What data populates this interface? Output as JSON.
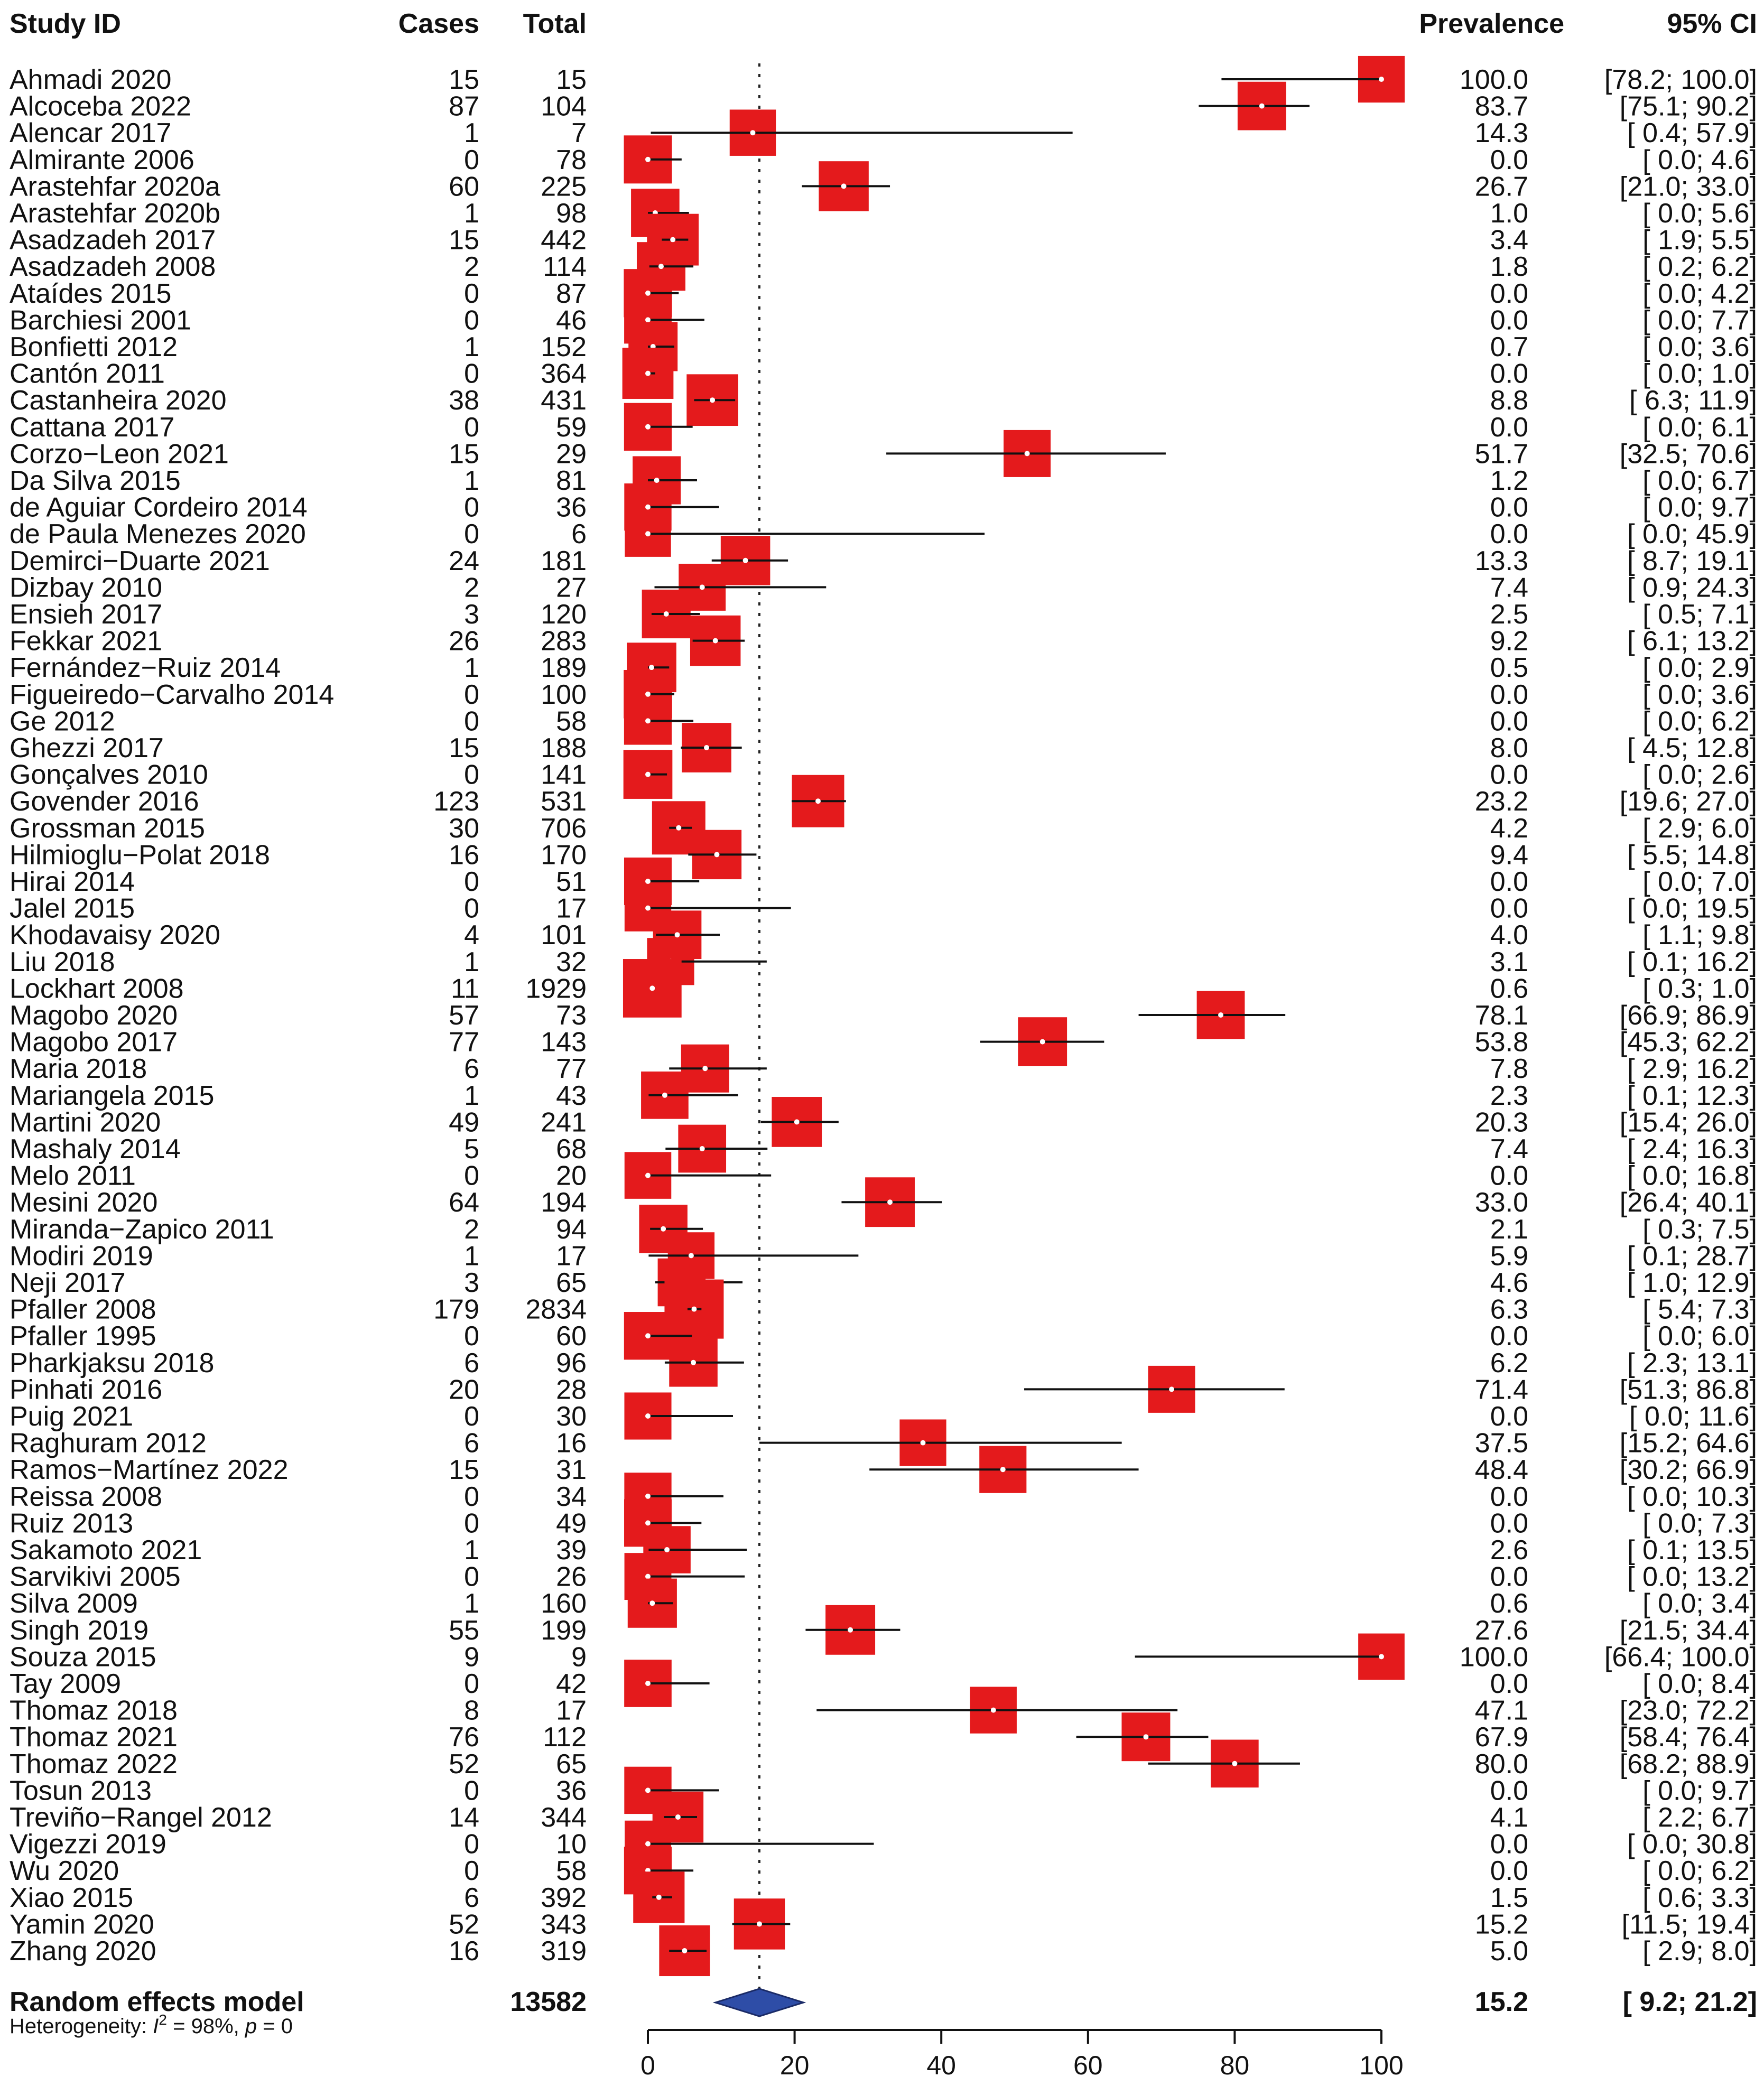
{
  "chart_data": {
    "type": "forest",
    "headers": {
      "study": "Study ID",
      "cases": "Cases",
      "total": "Total",
      "prevalence": "Prevalence",
      "ci": "95% CI"
    },
    "xlim": [
      0,
      100
    ],
    "xticks": [
      "0",
      "20",
      "40",
      "60",
      "80",
      "100"
    ],
    "reference_line": 15.2,
    "marker_color": "#e41a1c",
    "diamond_color": "#2e4da7",
    "studies": [
      {
        "study": "Ahmadi 2020",
        "cases": "15",
        "total": "15",
        "est": 100.0,
        "lo": 78.2,
        "hi": 100.0,
        "prev": "100.0",
        "ci": "[78.2; 100.0]"
      },
      {
        "study": "Alcoceba 2022",
        "cases": "87",
        "total": "104",
        "est": 83.7,
        "lo": 75.1,
        "hi": 90.2,
        "prev": "83.7",
        "ci": "[75.1; 90.2]"
      },
      {
        "study": "Alencar 2017",
        "cases": "1",
        "total": "7",
        "est": 14.3,
        "lo": 0.4,
        "hi": 57.9,
        "prev": "14.3",
        "ci": "[ 0.4; 57.9]"
      },
      {
        "study": "Almirante 2006",
        "cases": "0",
        "total": "78",
        "est": 0.0,
        "lo": 0.0,
        "hi": 4.6,
        "prev": "0.0",
        "ci": "[ 0.0; 4.6]"
      },
      {
        "study": "Arastehfar 2020a",
        "cases": "60",
        "total": "225",
        "est": 26.7,
        "lo": 21.0,
        "hi": 33.0,
        "prev": "26.7",
        "ci": "[21.0; 33.0]"
      },
      {
        "study": "Arastehfar 2020b",
        "cases": "1",
        "total": "98",
        "est": 1.0,
        "lo": 0.0,
        "hi": 5.6,
        "prev": "1.0",
        "ci": "[ 0.0; 5.6]"
      },
      {
        "study": "Asadzadeh 2017",
        "cases": "15",
        "total": "442",
        "est": 3.4,
        "lo": 1.9,
        "hi": 5.5,
        "prev": "3.4",
        "ci": "[ 1.9; 5.5]"
      },
      {
        "study": "Asadzadeh 2008",
        "cases": "2",
        "total": "114",
        "est": 1.8,
        "lo": 0.2,
        "hi": 6.2,
        "prev": "1.8",
        "ci": "[ 0.2; 6.2]"
      },
      {
        "study": "Ataídes 2015",
        "cases": "0",
        "total": "87",
        "est": 0.0,
        "lo": 0.0,
        "hi": 4.2,
        "prev": "0.0",
        "ci": "[ 0.0; 4.2]"
      },
      {
        "study": "Barchiesi 2001",
        "cases": "0",
        "total": "46",
        "est": 0.0,
        "lo": 0.0,
        "hi": 7.7,
        "prev": "0.0",
        "ci": "[ 0.0; 7.7]"
      },
      {
        "study": "Bonfietti 2012",
        "cases": "1",
        "total": "152",
        "est": 0.7,
        "lo": 0.0,
        "hi": 3.6,
        "prev": "0.7",
        "ci": "[ 0.0; 3.6]"
      },
      {
        "study": "Cantón 2011",
        "cases": "0",
        "total": "364",
        "est": 0.0,
        "lo": 0.0,
        "hi": 1.0,
        "prev": "0.0",
        "ci": "[ 0.0; 1.0]"
      },
      {
        "study": "Castanheira 2020",
        "cases": "38",
        "total": "431",
        "est": 8.8,
        "lo": 6.3,
        "hi": 11.9,
        "prev": "8.8",
        "ci": "[ 6.3; 11.9]"
      },
      {
        "study": "Cattana 2017",
        "cases": "0",
        "total": "59",
        "est": 0.0,
        "lo": 0.0,
        "hi": 6.1,
        "prev": "0.0",
        "ci": "[ 0.0; 6.1]"
      },
      {
        "study": "Corzo−Leon 2021",
        "cases": "15",
        "total": "29",
        "est": 51.7,
        "lo": 32.5,
        "hi": 70.6,
        "prev": "51.7",
        "ci": "[32.5; 70.6]"
      },
      {
        "study": "Da Silva 2015",
        "cases": "1",
        "total": "81",
        "est": 1.2,
        "lo": 0.0,
        "hi": 6.7,
        "prev": "1.2",
        "ci": "[ 0.0; 6.7]"
      },
      {
        "study": "de Aguiar Cordeiro 2014",
        "cases": "0",
        "total": "36",
        "est": 0.0,
        "lo": 0.0,
        "hi": 9.7,
        "prev": "0.0",
        "ci": "[ 0.0; 9.7]"
      },
      {
        "study": "de Paula Menezes 2020",
        "cases": "0",
        "total": "6",
        "est": 0.0,
        "lo": 0.0,
        "hi": 45.9,
        "prev": "0.0",
        "ci": "[ 0.0; 45.9]"
      },
      {
        "study": "Demirci−Duarte 2021",
        "cases": "24",
        "total": "181",
        "est": 13.3,
        "lo": 8.7,
        "hi": 19.1,
        "prev": "13.3",
        "ci": "[ 8.7; 19.1]"
      },
      {
        "study": "Dizbay 2010",
        "cases": "2",
        "total": "27",
        "est": 7.4,
        "lo": 0.9,
        "hi": 24.3,
        "prev": "7.4",
        "ci": "[ 0.9; 24.3]"
      },
      {
        "study": "Ensieh 2017",
        "cases": "3",
        "total": "120",
        "est": 2.5,
        "lo": 0.5,
        "hi": 7.1,
        "prev": "2.5",
        "ci": "[ 0.5; 7.1]"
      },
      {
        "study": "Fekkar 2021",
        "cases": "26",
        "total": "283",
        "est": 9.2,
        "lo": 6.1,
        "hi": 13.2,
        "prev": "9.2",
        "ci": "[ 6.1; 13.2]"
      },
      {
        "study": "Fernández−Ruiz 2014",
        "cases": "1",
        "total": "189",
        "est": 0.5,
        "lo": 0.0,
        "hi": 2.9,
        "prev": "0.5",
        "ci": "[ 0.0; 2.9]"
      },
      {
        "study": "Figueiredo−Carvalho 2014",
        "cases": "0",
        "total": "100",
        "est": 0.0,
        "lo": 0.0,
        "hi": 3.6,
        "prev": "0.0",
        "ci": "[ 0.0; 3.6]"
      },
      {
        "study": "Ge 2012",
        "cases": "0",
        "total": "58",
        "est": 0.0,
        "lo": 0.0,
        "hi": 6.2,
        "prev": "0.0",
        "ci": "[ 0.0; 6.2]"
      },
      {
        "study": "Ghezzi 2017",
        "cases": "15",
        "total": "188",
        "est": 8.0,
        "lo": 4.5,
        "hi": 12.8,
        "prev": "8.0",
        "ci": "[ 4.5; 12.8]"
      },
      {
        "study": "Gonçalves 2010",
        "cases": "0",
        "total": "141",
        "est": 0.0,
        "lo": 0.0,
        "hi": 2.6,
        "prev": "0.0",
        "ci": "[ 0.0; 2.6]"
      },
      {
        "study": "Govender 2016",
        "cases": "123",
        "total": "531",
        "est": 23.2,
        "lo": 19.6,
        "hi": 27.0,
        "prev": "23.2",
        "ci": "[19.6; 27.0]"
      },
      {
        "study": "Grossman 2015",
        "cases": "30",
        "total": "706",
        "est": 4.2,
        "lo": 2.9,
        "hi": 6.0,
        "prev": "4.2",
        "ci": "[ 2.9; 6.0]"
      },
      {
        "study": "Hilmioglu−Polat 2018",
        "cases": "16",
        "total": "170",
        "est": 9.4,
        "lo": 5.5,
        "hi": 14.8,
        "prev": "9.4",
        "ci": "[ 5.5; 14.8]"
      },
      {
        "study": "Hirai 2014",
        "cases": "0",
        "total": "51",
        "est": 0.0,
        "lo": 0.0,
        "hi": 7.0,
        "prev": "0.0",
        "ci": "[ 0.0; 7.0]"
      },
      {
        "study": "Jalel 2015",
        "cases": "0",
        "total": "17",
        "est": 0.0,
        "lo": 0.0,
        "hi": 19.5,
        "prev": "0.0",
        "ci": "[ 0.0; 19.5]"
      },
      {
        "study": "Khodavaisy 2020",
        "cases": "4",
        "total": "101",
        "est": 4.0,
        "lo": 1.1,
        "hi": 9.8,
        "prev": "4.0",
        "ci": "[ 1.1; 9.8]"
      },
      {
        "study": "Liu 2018",
        "cases": "1",
        "total": "32",
        "est": 3.1,
        "lo": 0.1,
        "hi": 16.2,
        "prev": "3.1",
        "ci": "[ 0.1; 16.2]"
      },
      {
        "study": "Lockhart 2008",
        "cases": "11",
        "total": "1929",
        "est": 0.6,
        "lo": 0.3,
        "hi": 1.0,
        "prev": "0.6",
        "ci": "[ 0.3; 1.0]"
      },
      {
        "study": "Magobo 2020",
        "cases": "57",
        "total": "73",
        "est": 78.1,
        "lo": 66.9,
        "hi": 86.9,
        "prev": "78.1",
        "ci": "[66.9; 86.9]"
      },
      {
        "study": "Magobo 2017",
        "cases": "77",
        "total": "143",
        "est": 53.8,
        "lo": 45.3,
        "hi": 62.2,
        "prev": "53.8",
        "ci": "[45.3; 62.2]"
      },
      {
        "study": "Maria 2018",
        "cases": "6",
        "total": "77",
        "est": 7.8,
        "lo": 2.9,
        "hi": 16.2,
        "prev": "7.8",
        "ci": "[ 2.9; 16.2]"
      },
      {
        "study": "Mariangela 2015",
        "cases": "1",
        "total": "43",
        "est": 2.3,
        "lo": 0.1,
        "hi": 12.3,
        "prev": "2.3",
        "ci": "[ 0.1; 12.3]"
      },
      {
        "study": "Martini 2020",
        "cases": "49",
        "total": "241",
        "est": 20.3,
        "lo": 15.4,
        "hi": 26.0,
        "prev": "20.3",
        "ci": "[15.4; 26.0]"
      },
      {
        "study": "Mashaly 2014",
        "cases": "5",
        "total": "68",
        "est": 7.4,
        "lo": 2.4,
        "hi": 16.3,
        "prev": "7.4",
        "ci": "[ 2.4; 16.3]"
      },
      {
        "study": "Melo 2011",
        "cases": "0",
        "total": "20",
        "est": 0.0,
        "lo": 0.0,
        "hi": 16.8,
        "prev": "0.0",
        "ci": "[ 0.0; 16.8]"
      },
      {
        "study": "Mesini 2020",
        "cases": "64",
        "total": "194",
        "est": 33.0,
        "lo": 26.4,
        "hi": 40.1,
        "prev": "33.0",
        "ci": "[26.4; 40.1]"
      },
      {
        "study": "Miranda−Zapico 2011",
        "cases": "2",
        "total": "94",
        "est": 2.1,
        "lo": 0.3,
        "hi": 7.5,
        "prev": "2.1",
        "ci": "[ 0.3; 7.5]"
      },
      {
        "study": "Modiri 2019",
        "cases": "1",
        "total": "17",
        "est": 5.9,
        "lo": 0.1,
        "hi": 28.7,
        "prev": "5.9",
        "ci": "[ 0.1; 28.7]"
      },
      {
        "study": "Neji 2017",
        "cases": "3",
        "total": "65",
        "est": 4.6,
        "lo": 1.0,
        "hi": 12.9,
        "prev": "4.6",
        "ci": "[ 1.0; 12.9]"
      },
      {
        "study": "Pfaller 2008",
        "cases": "179",
        "total": "2834",
        "est": 6.3,
        "lo": 5.4,
        "hi": 7.3,
        "prev": "6.3",
        "ci": "[ 5.4; 7.3]"
      },
      {
        "study": "Pfaller 1995",
        "cases": "0",
        "total": "60",
        "est": 0.0,
        "lo": 0.0,
        "hi": 6.0,
        "prev": "0.0",
        "ci": "[ 0.0; 6.0]"
      },
      {
        "study": "Pharkjaksu 2018",
        "cases": "6",
        "total": "96",
        "est": 6.2,
        "lo": 2.3,
        "hi": 13.1,
        "prev": "6.2",
        "ci": "[ 2.3; 13.1]"
      },
      {
        "study": "Pinhati 2016",
        "cases": "20",
        "total": "28",
        "est": 71.4,
        "lo": 51.3,
        "hi": 86.8,
        "prev": "71.4",
        "ci": "[51.3; 86.8]"
      },
      {
        "study": "Puig 2021",
        "cases": "0",
        "total": "30",
        "est": 0.0,
        "lo": 0.0,
        "hi": 11.6,
        "prev": "0.0",
        "ci": "[ 0.0; 11.6]"
      },
      {
        "study": "Raghuram 2012",
        "cases": "6",
        "total": "16",
        "est": 37.5,
        "lo": 15.2,
        "hi": 64.6,
        "prev": "37.5",
        "ci": "[15.2; 64.6]"
      },
      {
        "study": "Ramos−Martínez 2022",
        "cases": "15",
        "total": "31",
        "est": 48.4,
        "lo": 30.2,
        "hi": 66.9,
        "prev": "48.4",
        "ci": "[30.2; 66.9]"
      },
      {
        "study": "Reissa 2008",
        "cases": "0",
        "total": "34",
        "est": 0.0,
        "lo": 0.0,
        "hi": 10.3,
        "prev": "0.0",
        "ci": "[ 0.0; 10.3]"
      },
      {
        "study": "Ruiz 2013",
        "cases": "0",
        "total": "49",
        "est": 0.0,
        "lo": 0.0,
        "hi": 7.3,
        "prev": "0.0",
        "ci": "[ 0.0; 7.3]"
      },
      {
        "study": "Sakamoto 2021",
        "cases": "1",
        "total": "39",
        "est": 2.6,
        "lo": 0.1,
        "hi": 13.5,
        "prev": "2.6",
        "ci": "[ 0.1; 13.5]"
      },
      {
        "study": "Sarvikivi 2005",
        "cases": "0",
        "total": "26",
        "est": 0.0,
        "lo": 0.0,
        "hi": 13.2,
        "prev": "0.0",
        "ci": "[ 0.0; 13.2]"
      },
      {
        "study": "Silva 2009",
        "cases": "1",
        "total": "160",
        "est": 0.6,
        "lo": 0.0,
        "hi": 3.4,
        "prev": "0.6",
        "ci": "[ 0.0; 3.4]"
      },
      {
        "study": "Singh 2019",
        "cases": "55",
        "total": "199",
        "est": 27.6,
        "lo": 21.5,
        "hi": 34.4,
        "prev": "27.6",
        "ci": "[21.5; 34.4]"
      },
      {
        "study": "Souza 2015",
        "cases": "9",
        "total": "9",
        "est": 100.0,
        "lo": 66.4,
        "hi": 100.0,
        "prev": "100.0",
        "ci": "[66.4; 100.0]"
      },
      {
        "study": "Tay 2009",
        "cases": "0",
        "total": "42",
        "est": 0.0,
        "lo": 0.0,
        "hi": 8.4,
        "prev": "0.0",
        "ci": "[ 0.0; 8.4]"
      },
      {
        "study": "Thomaz 2018",
        "cases": "8",
        "total": "17",
        "est": 47.1,
        "lo": 23.0,
        "hi": 72.2,
        "prev": "47.1",
        "ci": "[23.0; 72.2]"
      },
      {
        "study": "Thomaz 2021",
        "cases": "76",
        "total": "112",
        "est": 67.9,
        "lo": 58.4,
        "hi": 76.4,
        "prev": "67.9",
        "ci": "[58.4; 76.4]"
      },
      {
        "study": "Thomaz 2022",
        "cases": "52",
        "total": "65",
        "est": 80.0,
        "lo": 68.2,
        "hi": 88.9,
        "prev": "80.0",
        "ci": "[68.2; 88.9]"
      },
      {
        "study": "Tosun 2013",
        "cases": "0",
        "total": "36",
        "est": 0.0,
        "lo": 0.0,
        "hi": 9.7,
        "prev": "0.0",
        "ci": "[ 0.0; 9.7]"
      },
      {
        "study": "Treviño−Rangel 2012",
        "cases": "14",
        "total": "344",
        "est": 4.1,
        "lo": 2.2,
        "hi": 6.7,
        "prev": "4.1",
        "ci": "[ 2.2; 6.7]"
      },
      {
        "study": "Vigezzi 2019",
        "cases": "0",
        "total": "10",
        "est": 0.0,
        "lo": 0.0,
        "hi": 30.8,
        "prev": "0.0",
        "ci": "[ 0.0; 30.8]"
      },
      {
        "study": "Wu 2020",
        "cases": "0",
        "total": "58",
        "est": 0.0,
        "lo": 0.0,
        "hi": 6.2,
        "prev": "0.0",
        "ci": "[ 0.0; 6.2]"
      },
      {
        "study": "Xiao 2015",
        "cases": "6",
        "total": "392",
        "est": 1.5,
        "lo": 0.6,
        "hi": 3.3,
        "prev": "1.5",
        "ci": "[ 0.6; 3.3]"
      },
      {
        "study": "Yamin 2020",
        "cases": "52",
        "total": "343",
        "est": 15.2,
        "lo": 11.5,
        "hi": 19.4,
        "prev": "15.2",
        "ci": "[11.5; 19.4]"
      },
      {
        "study": "Zhang 2020",
        "cases": "16",
        "total": "319",
        "est": 5.0,
        "lo": 2.9,
        "hi": 8.0,
        "prev": "5.0",
        "ci": "[ 2.9; 8.0]"
      }
    ],
    "summary": {
      "label": "Random effects model",
      "total": "13582",
      "est": 15.2,
      "lo": 9.2,
      "hi": 21.2,
      "prev": "15.2",
      "ci": "[ 9.2; 21.2]",
      "heterogeneity_prefix": "Heterogeneity: ",
      "i2_symbol": "I",
      "i2_superscript": "2",
      "i2_text": " = 98%, ",
      "p_symbol": "p",
      "p_text": " = 0"
    }
  }
}
